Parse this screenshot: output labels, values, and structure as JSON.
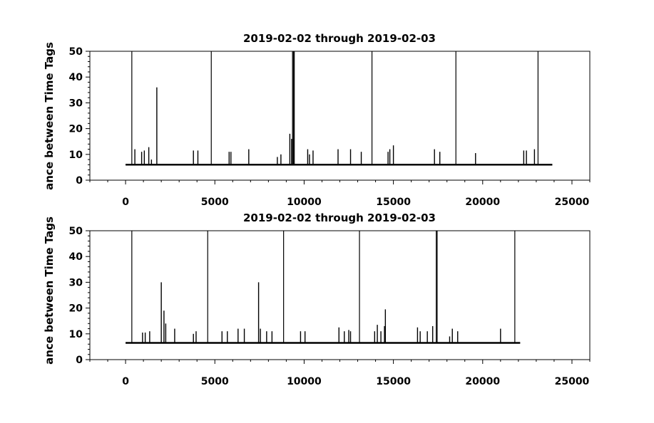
{
  "chart_data": [
    {
      "type": "line",
      "title": "2019-02-02 through 2019-02-03",
      "xlabel": "",
      "ylabel": "ance between Time Tags",
      "xlim": [
        -2000,
        26000
      ],
      "ylim": [
        0,
        50
      ],
      "xticks": [
        0,
        5000,
        10000,
        15000,
        20000,
        25000
      ],
      "yticks": [
        0,
        10,
        20,
        30,
        40,
        50
      ],
      "grid": false,
      "baseline": 6,
      "x_end": 23900,
      "series": [
        {
          "spikes": [
            [
              350,
              50
            ],
            [
              520,
              12
            ],
            [
              900,
              11
            ],
            [
              1050,
              11.5
            ],
            [
              1300,
              12.8
            ],
            [
              1450,
              8
            ],
            [
              1750,
              36
            ],
            [
              3800,
              11.5
            ],
            [
              4050,
              11.5
            ],
            [
              4800,
              50
            ],
            [
              5800,
              11
            ],
            [
              5900,
              11
            ],
            [
              6900,
              12
            ],
            [
              8500,
              9
            ],
            [
              8700,
              10
            ],
            [
              9200,
              18
            ],
            [
              9300,
              16
            ],
            [
              9350,
              50
            ],
            [
              9400,
              50
            ],
            [
              9450,
              50
            ],
            [
              10200,
              12
            ],
            [
              10300,
              10
            ],
            [
              10500,
              11.5
            ],
            [
              11900,
              12
            ],
            [
              12600,
              12
            ],
            [
              13200,
              11
            ],
            [
              13800,
              50
            ],
            [
              14700,
              11
            ],
            [
              14800,
              12
            ],
            [
              15000,
              13.5
            ],
            [
              17300,
              12
            ],
            [
              17600,
              11
            ],
            [
              18500,
              50
            ],
            [
              19600,
              10.5
            ],
            [
              22300,
              11.5
            ],
            [
              22450,
              11.5
            ],
            [
              22900,
              12
            ],
            [
              23100,
              50
            ]
          ]
        }
      ]
    },
    {
      "type": "line",
      "title": "2019-02-02 through 2019-02-03",
      "xlabel": "",
      "ylabel": "ance between Time Tags",
      "xlim": [
        -2000,
        26000
      ],
      "ylim": [
        0,
        50
      ],
      "xticks": [
        0,
        5000,
        10000,
        15000,
        20000,
        25000
      ],
      "yticks": [
        0,
        10,
        20,
        30,
        40,
        50
      ],
      "grid": false,
      "baseline": 6.5,
      "x_end": 22100,
      "series": [
        {
          "spikes": [
            [
              350,
              50
            ],
            [
              950,
              10.5
            ],
            [
              1100,
              10.5
            ],
            [
              1350,
              11
            ],
            [
              2000,
              30
            ],
            [
              2150,
              19
            ],
            [
              2250,
              14
            ],
            [
              2750,
              12
            ],
            [
              3800,
              10
            ],
            [
              3950,
              11
            ],
            [
              4600,
              50
            ],
            [
              5400,
              11
            ],
            [
              5700,
              11
            ],
            [
              6300,
              12
            ],
            [
              6650,
              12
            ],
            [
              7450,
              30
            ],
            [
              7550,
              12
            ],
            [
              7900,
              11
            ],
            [
              8200,
              11
            ],
            [
              8850,
              50
            ],
            [
              9800,
              11
            ],
            [
              10050,
              11
            ],
            [
              11950,
              12.5
            ],
            [
              12250,
              11
            ],
            [
              12500,
              11.5
            ],
            [
              12600,
              11
            ],
            [
              13100,
              50
            ],
            [
              13950,
              11
            ],
            [
              14100,
              13.5
            ],
            [
              14300,
              11
            ],
            [
              14500,
              13
            ],
            [
              14550,
              19.5
            ],
            [
              16350,
              12.5
            ],
            [
              16500,
              11
            ],
            [
              16900,
              11
            ],
            [
              17200,
              13
            ],
            [
              17400,
              50
            ],
            [
              17450,
              50
            ],
            [
              18150,
              9
            ],
            [
              18300,
              12
            ],
            [
              18600,
              11
            ],
            [
              21000,
              12
            ],
            [
              21800,
              50
            ]
          ]
        }
      ]
    }
  ]
}
